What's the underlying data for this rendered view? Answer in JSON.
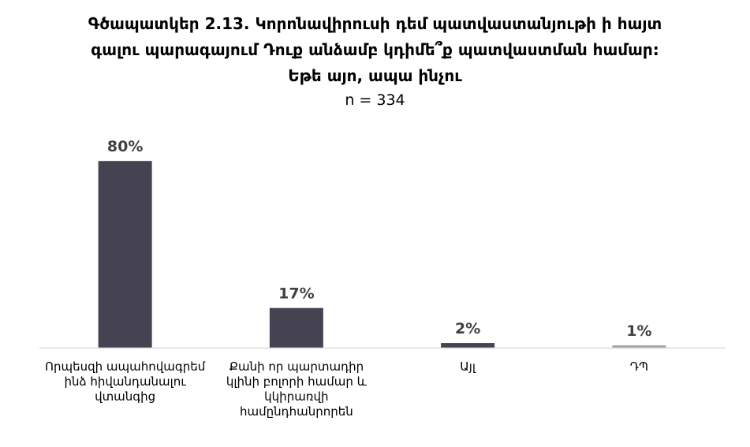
{
  "chart_data": {
    "type": "bar",
    "title_lines": [
      "Գծապատկեր 2.13. Կորոնավիրուսի դեմ պատվաստանյութի ի հայտ",
      "գալու պարագայում Դուք անձամբ կդիմե՞ք պատվաստման համար:",
      "Եթե այո, ապա ինչու"
    ],
    "subtitle": "n = 334",
    "categories": [
      [
        "Որպեսզի ապահովագրեմ",
        "ինձ հիվանդանալու",
        "վտանգից"
      ],
      [
        "Քանի որ պարտադիր",
        "կլինի բոլորի համար և",
        "կկիրառվի",
        "համընդհանրորեն"
      ],
      [
        "Այլ"
      ],
      [
        "ԴՊ"
      ]
    ],
    "values": [
      80,
      17,
      2,
      1
    ],
    "value_labels": [
      "80%",
      "17%",
      "2%",
      "1%"
    ],
    "ylim": [
      0,
      100
    ],
    "colors": {
      "bar": "#454252",
      "bar_last": "#a6a6a6",
      "axis": "#d9d9d9",
      "label": "#404040"
    }
  }
}
